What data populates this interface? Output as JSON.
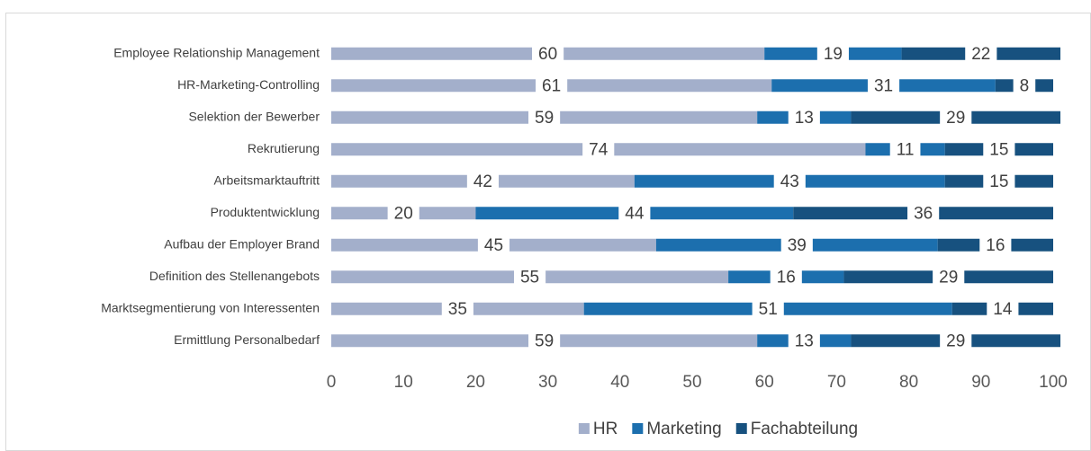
{
  "chart_data": {
    "type": "stacked_barh",
    "categories": [
      "Employee Relationship Management",
      "HR-Marketing-Controlling",
      "Selektion der Bewerber",
      "Rekrutierung",
      "Arbeitsmarktauftritt",
      "Produktentwicklung",
      "Aufbau der Employer Brand",
      "Definition des Stellenangebots",
      "Marktsegmentierung von Interessenten",
      "Ermittlung Personalbedarf"
    ],
    "series": [
      {
        "name": "HR",
        "color": "#a3afcb",
        "values": [
          60,
          61,
          59,
          74,
          42,
          20,
          45,
          55,
          35,
          59
        ]
      },
      {
        "name": "Marketing",
        "color": "#1c6fae",
        "values": [
          19,
          31,
          13,
          11,
          43,
          44,
          39,
          16,
          51,
          13
        ]
      },
      {
        "name": "Fachabteilung",
        "color": "#17517f",
        "values": [
          22,
          8,
          29,
          15,
          15,
          36,
          16,
          29,
          14,
          29
        ]
      }
    ],
    "xlim": [
      0,
      100
    ],
    "xticks": [
      0,
      10,
      20,
      30,
      40,
      50,
      60,
      70,
      80,
      90,
      100
    ],
    "grid": false,
    "legend": "bottom"
  }
}
